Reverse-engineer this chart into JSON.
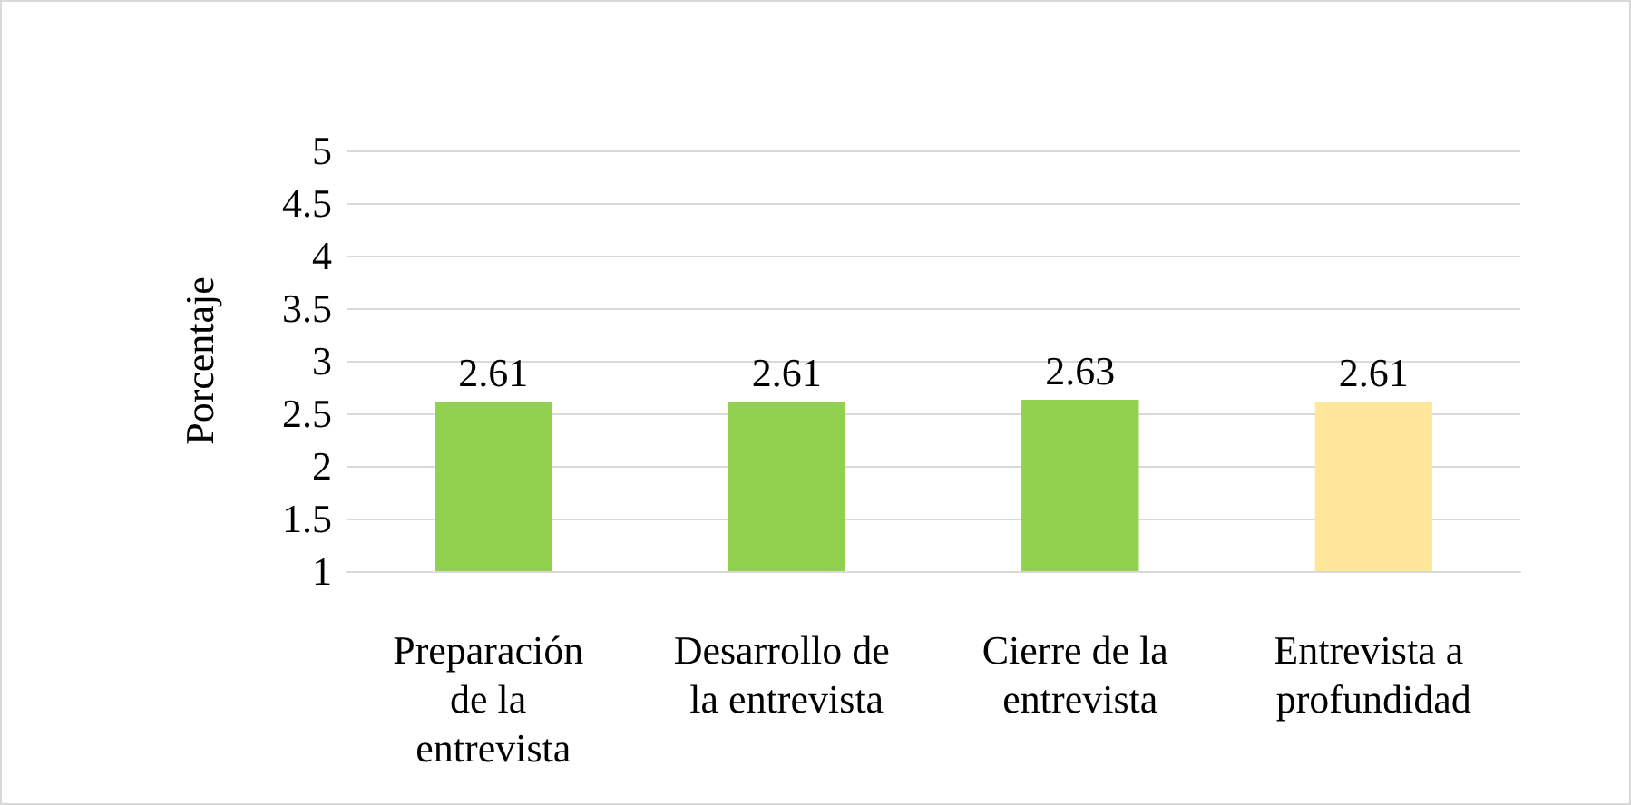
{
  "chart_data": {
    "type": "bar",
    "ylabel": "Porcentaje",
    "categories": [
      "Preparación de la entrevista",
      "Desarrollo de la entrevista",
      "Cierre de la entrevista",
      "Entrevista a profundidad"
    ],
    "values": [
      2.61,
      2.61,
      2.63,
      2.61
    ],
    "colors": [
      "#92d050",
      "#92d050",
      "#92d050",
      "#ffe699"
    ],
    "ylim": [
      1,
      5
    ],
    "yticks": [
      1,
      1.5,
      2,
      2.5,
      3,
      3.5,
      4,
      4.5,
      5
    ],
    "grid": "y",
    "data_labels": true
  }
}
